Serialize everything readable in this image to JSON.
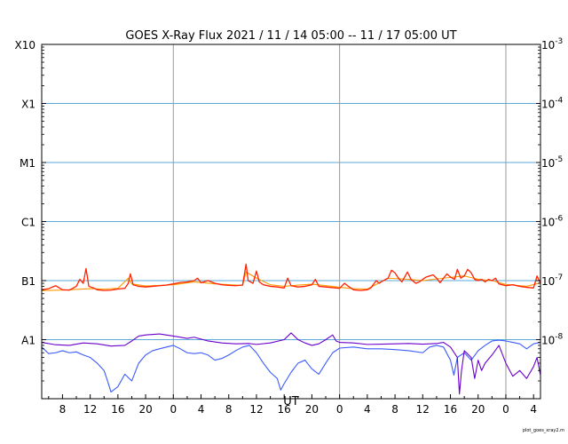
{
  "chart_data": {
    "type": "line",
    "title": "GOES X-Ray Flux   2021 / 11 / 14   05:00 -- 11 / 17   05:00   UT",
    "xlabel": "UT",
    "credit": "plot_goes_xray2.m",
    "x_ticks": [
      "8",
      "12",
      "16",
      "20",
      "0",
      "4",
      "8",
      "12",
      "16",
      "20",
      "0",
      "4",
      "8",
      "12",
      "16",
      "20",
      "0",
      "4"
    ],
    "left_ticks": [
      "X10",
      "X1",
      "M1",
      "C1",
      "B1",
      "A1"
    ],
    "right_ticks": [
      {
        "base": "10",
        "exp": "-3"
      },
      {
        "base": "10",
        "exp": "-4"
      },
      {
        "base": "10",
        "exp": "-5"
      },
      {
        "base": "10",
        "exp": "-6"
      },
      {
        "base": "10",
        "exp": "-7"
      },
      {
        "base": "10",
        "exp": "-8"
      }
    ],
    "yscale": "log",
    "ylim": [
      1e-09,
      0.001
    ],
    "x_range_hours": [
      5,
      77
    ],
    "colors": {
      "grid_h": "#5aaad8",
      "day_lines": "#999999",
      "long_primary": "#ff2200",
      "long_secondary": "#ff9900",
      "short_primary": "#6a00cc",
      "short_secondary": "#3b5bff"
    },
    "series": [
      {
        "color_key": "long_primary",
        "points": [
          [
            5,
            7e-08
          ],
          [
            6,
            7.3e-08
          ],
          [
            7,
            8.2e-08
          ],
          [
            8,
            7e-08
          ],
          [
            9,
            6.9e-08
          ],
          [
            10,
            8e-08
          ],
          [
            10.5,
            1.05e-07
          ],
          [
            11,
            9e-08
          ],
          [
            11.4,
            1.6e-07
          ],
          [
            11.8,
            8e-08
          ],
          [
            12.5,
            7.5e-08
          ],
          [
            13,
            7e-08
          ],
          [
            14,
            6.8e-08
          ],
          [
            15,
            6.9e-08
          ],
          [
            16,
            7.2e-08
          ],
          [
            17,
            7.4e-08
          ],
          [
            17.5,
            9e-08
          ],
          [
            17.8,
            1.3e-07
          ],
          [
            18.2,
            8.5e-08
          ],
          [
            19,
            8e-08
          ],
          [
            20,
            7.8e-08
          ],
          [
            21,
            8e-08
          ],
          [
            22,
            8.2e-08
          ],
          [
            23,
            8.4e-08
          ],
          [
            24,
            8.8e-08
          ],
          [
            25,
            9.3e-08
          ],
          [
            26,
            9.5e-08
          ],
          [
            27,
            1e-07
          ],
          [
            27.5,
            1.1e-07
          ],
          [
            28,
            9.2e-08
          ],
          [
            29,
            1e-07
          ],
          [
            30,
            9e-08
          ],
          [
            31,
            8.5e-08
          ],
          [
            32,
            8.3e-08
          ],
          [
            33,
            8.2e-08
          ],
          [
            34,
            8.4e-08
          ],
          [
            34.5,
            1.9e-07
          ],
          [
            34.8,
            1e-07
          ],
          [
            35.5,
            9e-08
          ],
          [
            36,
            1.45e-07
          ],
          [
            36.4,
            9.5e-08
          ],
          [
            37,
            8.5e-08
          ],
          [
            38,
            8e-08
          ],
          [
            39,
            7.8e-08
          ],
          [
            40,
            7.5e-08
          ],
          [
            40.5,
            1.1e-07
          ],
          [
            41,
            8.2e-08
          ],
          [
            42,
            7.8e-08
          ],
          [
            43,
            8e-08
          ],
          [
            44,
            8.5e-08
          ],
          [
            44.5,
            1.05e-07
          ],
          [
            45,
            8e-08
          ],
          [
            46,
            7.8e-08
          ],
          [
            47,
            7.6e-08
          ],
          [
            48,
            7.4e-08
          ],
          [
            48.7,
            9e-08
          ],
          [
            49.4,
            7.8e-08
          ],
          [
            50,
            7e-08
          ],
          [
            51,
            6.8e-08
          ],
          [
            52,
            7e-08
          ],
          [
            52.5,
            7.5e-08
          ],
          [
            53,
            9e-08
          ],
          [
            53.3,
            1e-07
          ],
          [
            53.7,
            9e-08
          ],
          [
            54,
            9.5e-08
          ],
          [
            55,
            1.1e-07
          ],
          [
            55.5,
            1.5e-07
          ],
          [
            56,
            1.35e-07
          ],
          [
            56.5,
            1.1e-07
          ],
          [
            57,
            9.5e-08
          ],
          [
            57.8,
            1.4e-07
          ],
          [
            58.3,
            1.05e-07
          ],
          [
            59,
            9e-08
          ],
          [
            59.5,
            9.5e-08
          ],
          [
            60,
            1.05e-07
          ],
          [
            60.5,
            1.15e-07
          ],
          [
            61,
            1.2e-07
          ],
          [
            61.5,
            1.25e-07
          ],
          [
            62,
            1.1e-07
          ],
          [
            62.5,
            9.2e-08
          ],
          [
            63,
            1.1e-07
          ],
          [
            63.5,
            1.3e-07
          ],
          [
            64,
            1.15e-07
          ],
          [
            64.6,
            1.05e-07
          ],
          [
            65,
            1.55e-07
          ],
          [
            65.5,
            1.1e-07
          ],
          [
            66,
            1.2e-07
          ],
          [
            66.5,
            1.55e-07
          ],
          [
            67,
            1.35e-07
          ],
          [
            67.5,
            1.05e-07
          ],
          [
            68,
            1e-07
          ],
          [
            68.5,
            1.05e-07
          ],
          [
            69,
            9.5e-08
          ],
          [
            69.5,
            1.05e-07
          ],
          [
            70,
            1e-07
          ],
          [
            70.5,
            1.1e-07
          ],
          [
            71,
            8.8e-08
          ],
          [
            72,
            8.2e-08
          ],
          [
            73,
            8.5e-08
          ],
          [
            74,
            8e-08
          ],
          [
            75,
            7.7e-08
          ],
          [
            76,
            7.5e-08
          ],
          [
            76.5,
            1.2e-07
          ],
          [
            77,
            9e-08
          ]
        ]
      },
      {
        "color_key": "long_secondary",
        "points": [
          [
            5,
            6.8e-08
          ],
          [
            8,
            6.9e-08
          ],
          [
            12,
            7.3e-08
          ],
          [
            14,
            7.2e-08
          ],
          [
            16,
            7.4e-08
          ],
          [
            17.5,
            1.1e-07
          ],
          [
            18,
            8.8e-08
          ],
          [
            20,
            8.1e-08
          ],
          [
            24,
            8.5e-08
          ],
          [
            27,
            9.5e-08
          ],
          [
            30,
            8.8e-08
          ],
          [
            34,
            8.3e-08
          ],
          [
            34.5,
            1.4e-07
          ],
          [
            36,
            1.1e-07
          ],
          [
            38,
            8.5e-08
          ],
          [
            40,
            8e-08
          ],
          [
            42,
            8.4e-08
          ],
          [
            44,
            8.7e-08
          ],
          [
            46,
            8.2e-08
          ],
          [
            48,
            7.7e-08
          ],
          [
            50,
            7.3e-08
          ],
          [
            52,
            7.2e-08
          ],
          [
            55,
            1.1e-07
          ],
          [
            58,
            1.05e-07
          ],
          [
            60,
            1e-07
          ],
          [
            63,
            1.1e-07
          ],
          [
            66,
            1.2e-07
          ],
          [
            68,
            1.05e-07
          ],
          [
            70,
            1e-07
          ],
          [
            72,
            8.6e-08
          ],
          [
            75,
            8e-08
          ],
          [
            77,
            9.2e-08
          ]
        ]
      },
      {
        "color_key": "short_primary",
        "points": [
          [
            5,
            9e-09
          ],
          [
            7,
            8.2e-09
          ],
          [
            9,
            8e-09
          ],
          [
            11,
            8.8e-09
          ],
          [
            13,
            8.5e-09
          ],
          [
            15,
            7.8e-09
          ],
          [
            17,
            8e-09
          ],
          [
            18,
            9.5e-09
          ],
          [
            19,
            1.15e-08
          ],
          [
            20,
            1.2e-08
          ],
          [
            22,
            1.25e-08
          ],
          [
            24,
            1.15e-08
          ],
          [
            26,
            1.05e-08
          ],
          [
            27,
            1.1e-08
          ],
          [
            29,
            9.5e-09
          ],
          [
            31,
            8.8e-09
          ],
          [
            33,
            8.5e-09
          ],
          [
            35,
            8.6e-09
          ],
          [
            36,
            8.3e-09
          ],
          [
            38,
            8.8e-09
          ],
          [
            40,
            1e-08
          ],
          [
            41,
            1.3e-08
          ],
          [
            42,
            1e-08
          ],
          [
            43,
            8.8e-09
          ],
          [
            44,
            8e-09
          ],
          [
            45,
            8.5e-09
          ],
          [
            46,
            1e-08
          ],
          [
            47,
            1.2e-08
          ],
          [
            47.5,
            9.5e-09
          ],
          [
            48,
            9e-09
          ],
          [
            50,
            8.8e-09
          ],
          [
            52,
            8.3e-09
          ],
          [
            54,
            8.4e-09
          ],
          [
            56,
            8.5e-09
          ],
          [
            58,
            8.6e-09
          ],
          [
            60,
            8.4e-09
          ],
          [
            62,
            8.6e-09
          ],
          [
            63,
            9e-09
          ],
          [
            64,
            7.5e-09
          ],
          [
            65,
            5e-09
          ],
          [
            65.3,
            1.2e-09
          ],
          [
            65.6,
            3e-09
          ],
          [
            66,
            6.5e-09
          ],
          [
            67,
            5e-09
          ],
          [
            67.5,
            2.2e-09
          ],
          [
            68,
            4.5e-09
          ],
          [
            68.5,
            3e-09
          ],
          [
            69,
            4e-09
          ],
          [
            70,
            5.5e-09
          ],
          [
            71,
            8e-09
          ],
          [
            72,
            4e-09
          ],
          [
            73,
            2.4e-09
          ],
          [
            74,
            3e-09
          ],
          [
            75,
            2.2e-09
          ],
          [
            76,
            3.5e-09
          ],
          [
            76.5,
            5e-09
          ],
          [
            77,
            2.5e-09
          ]
        ]
      },
      {
        "color_key": "short_secondary",
        "points": [
          [
            5,
            7.5e-09
          ],
          [
            6,
            5.8e-09
          ],
          [
            7,
            6e-09
          ],
          [
            8,
            6.5e-09
          ],
          [
            9,
            6e-09
          ],
          [
            10,
            6.2e-09
          ],
          [
            11,
            5.5e-09
          ],
          [
            12,
            5e-09
          ],
          [
            13,
            4e-09
          ],
          [
            14,
            3e-09
          ],
          [
            14.5,
            2e-09
          ],
          [
            15,
            1.3e-09
          ],
          [
            16,
            1.6e-09
          ],
          [
            17,
            2.6e-09
          ],
          [
            18,
            2e-09
          ],
          [
            19,
            4e-09
          ],
          [
            20,
            5.5e-09
          ],
          [
            21,
            6.5e-09
          ],
          [
            22,
            7e-09
          ],
          [
            23,
            7.5e-09
          ],
          [
            24,
            8e-09
          ],
          [
            25,
            7e-09
          ],
          [
            26,
            6e-09
          ],
          [
            27,
            5.8e-09
          ],
          [
            28,
            6e-09
          ],
          [
            29,
            5.5e-09
          ],
          [
            30,
            4.5e-09
          ],
          [
            31,
            4.8e-09
          ],
          [
            32,
            5.5e-09
          ],
          [
            33,
            6.5e-09
          ],
          [
            34,
            7.5e-09
          ],
          [
            35,
            8e-09
          ],
          [
            36,
            6e-09
          ],
          [
            37,
            4e-09
          ],
          [
            38,
            2.8e-09
          ],
          [
            39,
            2.2e-09
          ],
          [
            39.5,
            1.4e-09
          ],
          [
            40,
            1.8e-09
          ],
          [
            41,
            2.8e-09
          ],
          [
            42,
            4e-09
          ],
          [
            43,
            4.5e-09
          ],
          [
            44,
            3.2e-09
          ],
          [
            45,
            2.6e-09
          ],
          [
            46,
            4e-09
          ],
          [
            47,
            6e-09
          ],
          [
            48,
            7.2e-09
          ],
          [
            50,
            7.5e-09
          ],
          [
            52,
            7e-09
          ],
          [
            54,
            7e-09
          ],
          [
            56,
            6.8e-09
          ],
          [
            58,
            6.5e-09
          ],
          [
            60,
            6e-09
          ],
          [
            61,
            7.5e-09
          ],
          [
            62,
            8e-09
          ],
          [
            63,
            7.5e-09
          ],
          [
            64,
            4.5e-09
          ],
          [
            64.5,
            2.5e-09
          ],
          [
            65,
            5e-09
          ],
          [
            66,
            6e-09
          ],
          [
            67,
            4.5e-09
          ],
          [
            68,
            6.5e-09
          ],
          [
            69,
            8e-09
          ],
          [
            70,
            9.5e-09
          ],
          [
            71,
            9.8e-09
          ],
          [
            72,
            9.5e-09
          ],
          [
            73,
            9e-09
          ],
          [
            74,
            8.5e-09
          ],
          [
            75,
            7e-09
          ],
          [
            76,
            8.5e-09
          ],
          [
            77,
            9e-09
          ]
        ]
      }
    ]
  }
}
